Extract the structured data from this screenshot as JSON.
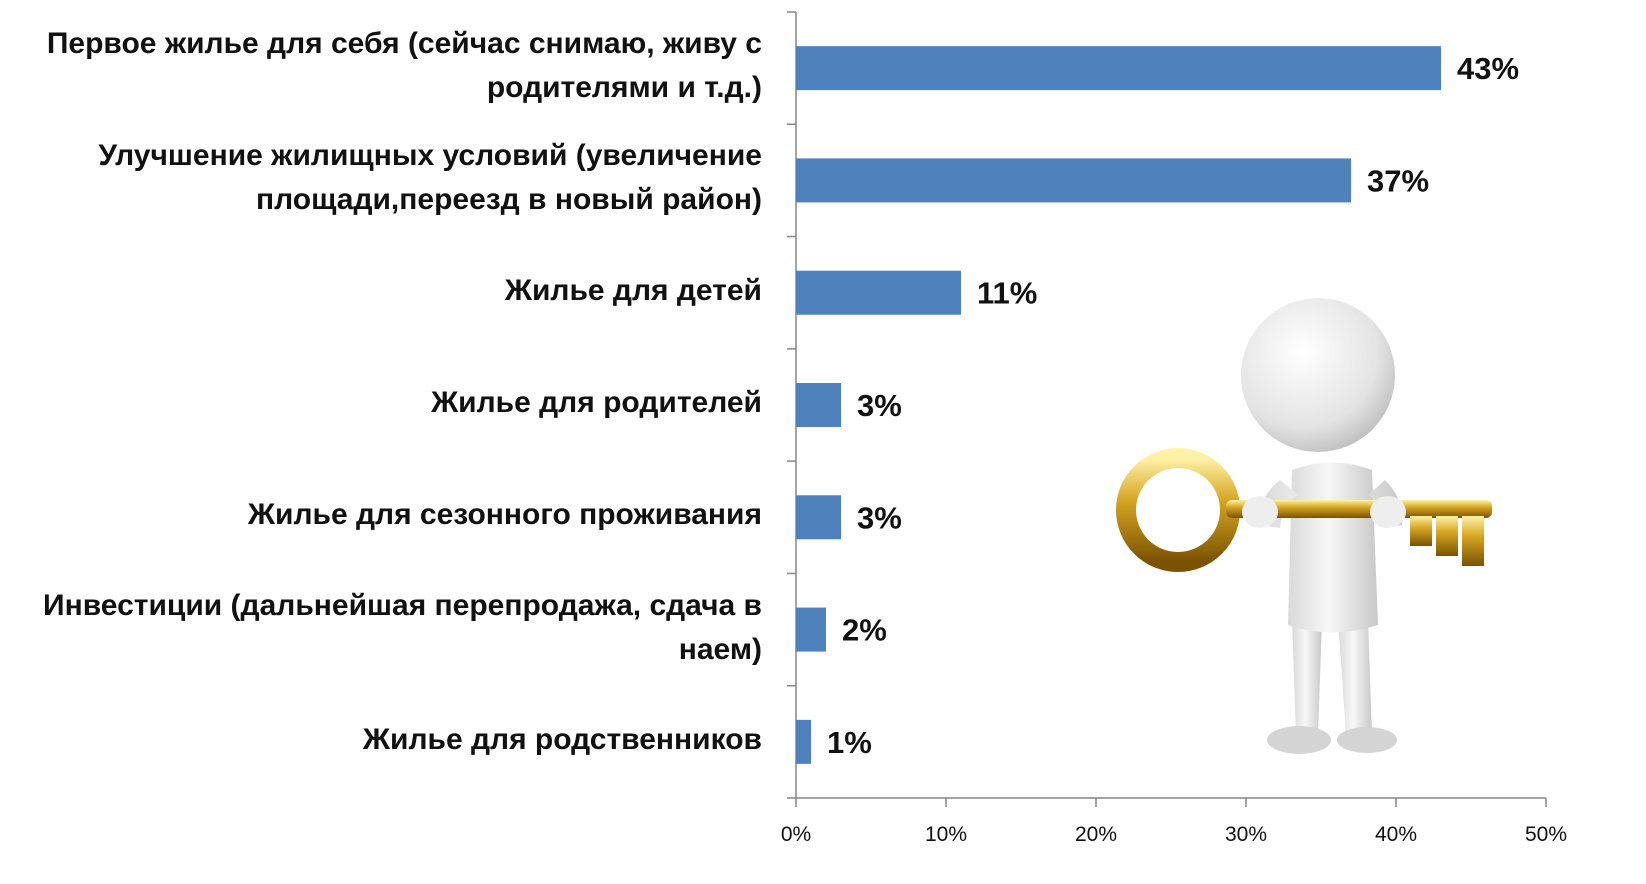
{
  "chart_data": {
    "type": "bar",
    "orientation": "horizontal",
    "title": "",
    "xlabel": "",
    "ylabel": "",
    "categories": [
      "Первое жилье для себя (сейчас снимаю, живу с родителями и т.д.)",
      "Улучшение жилищных условий (увеличение площади,переезд в новый район)",
      "Жилье для детей",
      "Жилье для родителей",
      "Жилье для сезонного проживания",
      "Инвестиции (дальнейшая перепродажа, сдача в наем)",
      "Жилье для родственников"
    ],
    "category_lines": [
      [
        "Первое жилье для себя (сейчас снимаю, живу с",
        "родителями и т.д.)"
      ],
      [
        "Улучшение жилищных условий (увеличение",
        "площади,переезд в новый район)"
      ],
      [
        "Жилье для детей"
      ],
      [
        "Жилье для родителей"
      ],
      [
        "Жилье для сезонного проживания"
      ],
      [
        "Инвестиции (дальнейшая перепродажа, сдача в",
        "наем)"
      ],
      [
        "Жилье для родственников"
      ]
    ],
    "values": [
      43,
      37,
      11,
      3,
      3,
      2,
      1
    ],
    "value_labels": [
      "43%",
      "37%",
      "11%",
      "3%",
      "3%",
      "2%",
      "1%"
    ],
    "xlim": [
      0,
      50
    ],
    "xticks": [
      0,
      10,
      20,
      30,
      40,
      50
    ],
    "xtick_labels": [
      "0%",
      "10%",
      "20%",
      "30%",
      "40%",
      "50%"
    ],
    "grid": false,
    "bar_color": "#4f81bd",
    "axis_color": "#868686"
  },
  "illustration": {
    "description_icon": "person-holding-key",
    "key_color": "#c9a227",
    "figure_color": "#e6e6e6"
  }
}
